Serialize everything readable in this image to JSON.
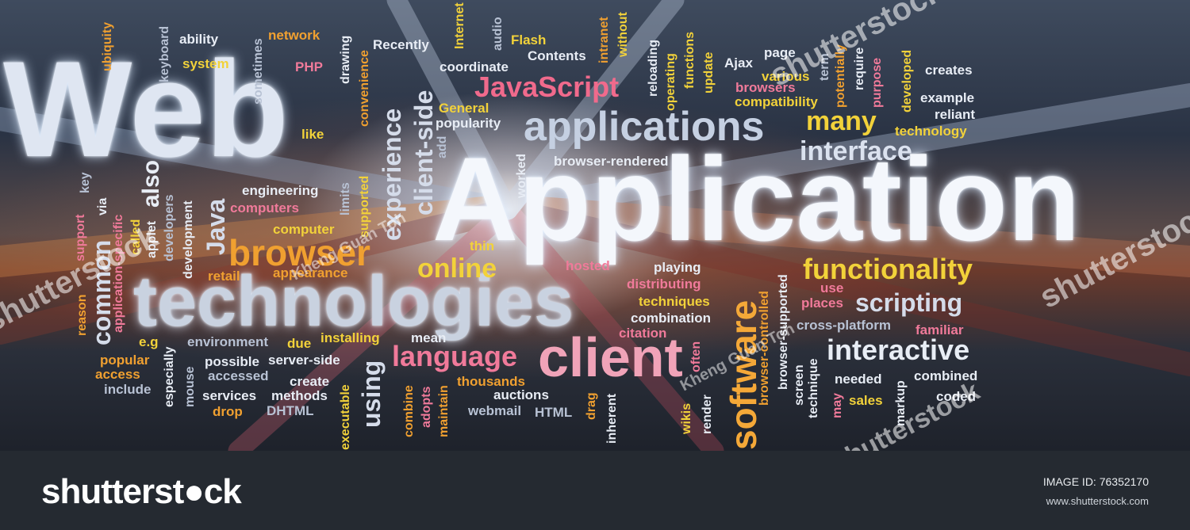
{
  "words": {
    "web": "Web",
    "application": "Application",
    "technologies": "technologies",
    "client": "client",
    "applications": "applications",
    "software": "software",
    "browser": "browser",
    "javascript": "JavaScript",
    "functionality": "functionality",
    "interactive": "interactive",
    "scripting": "scripting",
    "interface": "interface",
    "many": "many",
    "online": "online",
    "language": "language",
    "experience": "experience",
    "client_side": "client-side",
    "common": "common",
    "java": "Java",
    "also": "also",
    "using": "using",
    "ubiquity": "ubiquity",
    "keyboard": "keyboard",
    "ability": "ability",
    "network": "network",
    "system": "system",
    "sometimes": "sometimes",
    "php": "PHP",
    "drawing": "drawing",
    "convenience": "convenience",
    "recently": "Recently",
    "internet": "Internet",
    "audio": "audio",
    "coordinate": "coordinate",
    "flash": "Flash",
    "contents": "Contents",
    "intranet": "intranet",
    "without": "without",
    "reloading": "reloading",
    "operating": "operating",
    "functions": "functions",
    "update": "update",
    "ajax": "Ajax",
    "page": "page",
    "various": "various",
    "browsers": "browsers",
    "compatibility": "compatibility",
    "term": "term",
    "potentially": "potentially",
    "require": "require",
    "purpose": "purpose",
    "developed": "developed",
    "creates": "creates",
    "example": "example",
    "reliant": "reliant",
    "technology": "technology",
    "like": "like",
    "general": "General",
    "popularity": "popularity",
    "add": "add",
    "worked": "worked",
    "browser_rendered": "browser-rendered",
    "engineering": "engineering",
    "computers": "computers",
    "computer": "computer",
    "limits": "limits",
    "supported": "supported",
    "key": "key",
    "via": "via",
    "support": "support",
    "application_specific": "application-specific",
    "called": "called",
    "applet": "applet",
    "developers": "developers",
    "development": "development",
    "retail": "retail",
    "appearance": "appearance",
    "thin": "thin",
    "hosted": "hosted",
    "playing": "playing",
    "distributing": "distributing",
    "techniques": "techniques",
    "combination": "combination",
    "citation": "citation",
    "browser_controlled": "browser-controlled",
    "browser_supported": "browser-supported",
    "use": "use",
    "places": "places",
    "cross_platform": "cross-platform",
    "familiar": "familiar",
    "reason": "reason",
    "e_g": "e.g",
    "popular": "popular",
    "access": "access",
    "include": "include",
    "especially": "especially",
    "mouse": "mouse",
    "environment": "environment",
    "due": "due",
    "installing": "installing",
    "possible": "possible",
    "server_side": "server-side",
    "accessed": "accessed",
    "create": "create",
    "services": "services",
    "methods": "methods",
    "drop": "drop",
    "dhtml": "DHTML",
    "executable": "executable",
    "mean": "mean",
    "combine": "combine",
    "adopts": "adopts",
    "maintain": "maintain",
    "thousands": "thousands",
    "auctions": "auctions",
    "webmail": "webmail",
    "html": "HTML",
    "drag": "drag",
    "inherent": "inherent",
    "wikis": "wikis",
    "often": "often",
    "render": "render",
    "screen": "screen",
    "technique": "technique",
    "may": "may",
    "needed": "needed",
    "combined": "combined",
    "sales": "sales",
    "markup": "markup",
    "coded": "coded"
  },
  "watermarks": {
    "shutterstock": "shutterstock",
    "author": "Kheng Guan Toh"
  },
  "footer": {
    "logo": "shutterst●ck",
    "image_id": "IMAGE ID: 76352170",
    "site": "www.shutterstock.com"
  }
}
